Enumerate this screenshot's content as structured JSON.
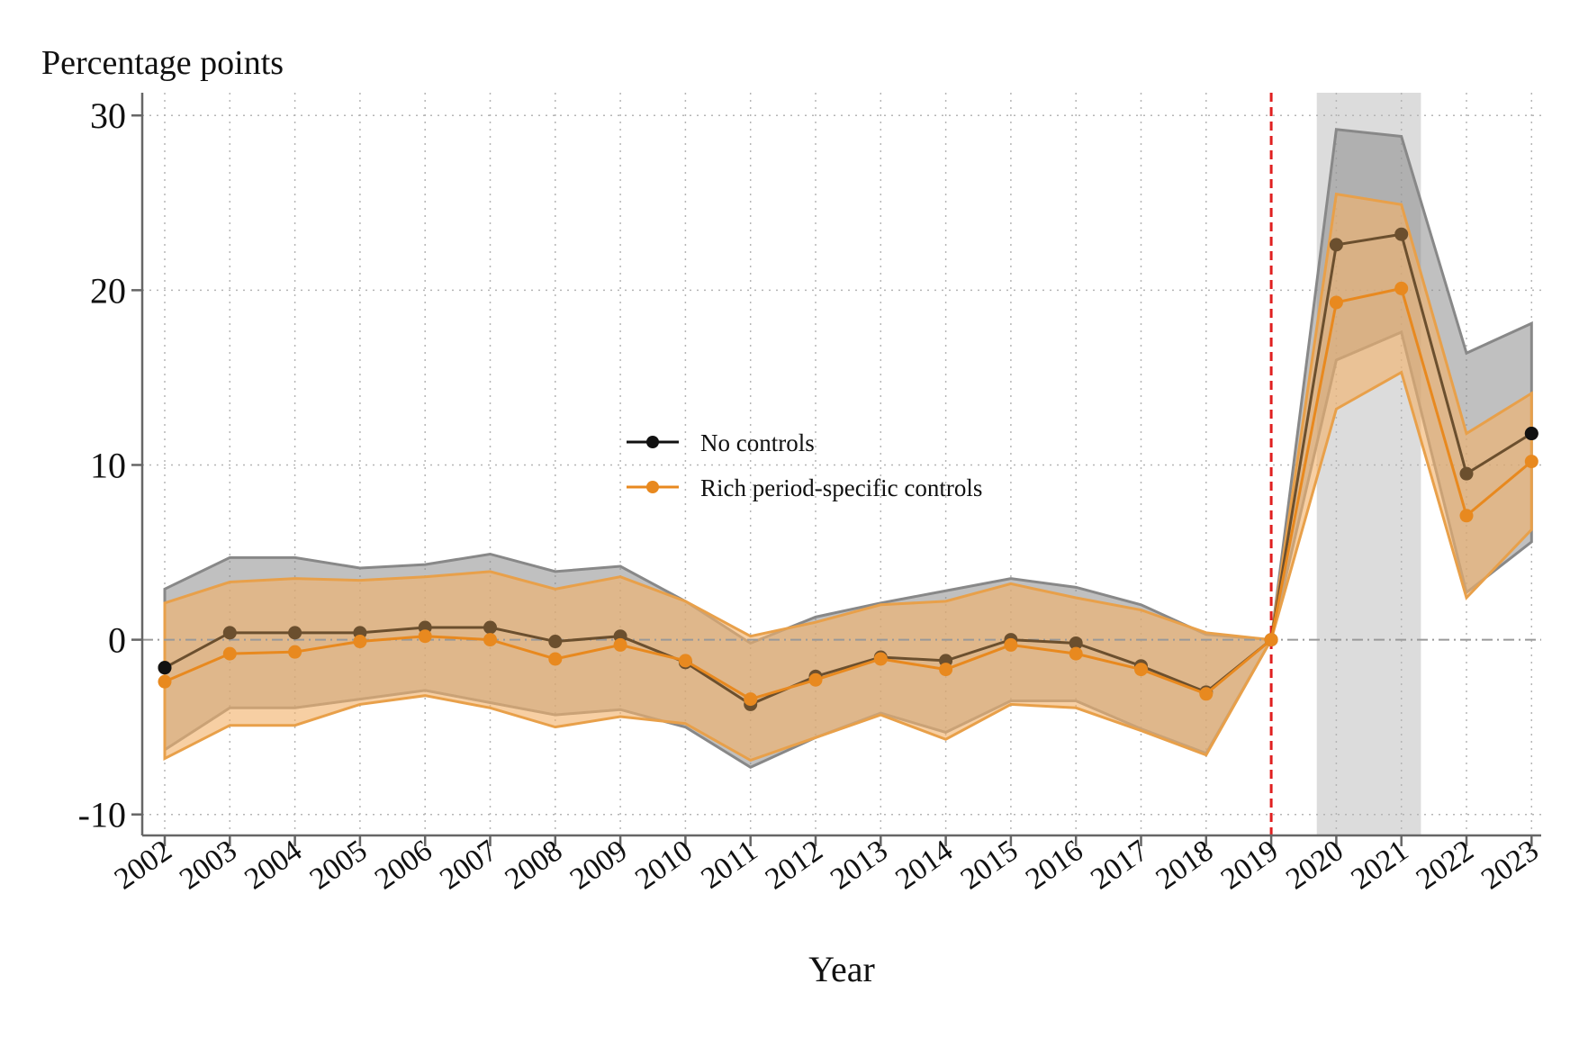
{
  "colors": {
    "no_controls": "#111111",
    "no_controls_line": "#6b4f2e",
    "no_controls_band": "#8c8c8c",
    "rich_controls": "#e8891f",
    "rich_controls_band": "#f2b26a",
    "overlap_band": "#c9a27a",
    "vline": "#e02020",
    "shade": "#dcdcdc",
    "zero_line": "#999999"
  },
  "chart_data": {
    "type": "line",
    "title": "",
    "ylabel": "Percentage points",
    "xlabel": "Year",
    "ylim": [
      -11.2,
      31.3
    ],
    "yticks": [
      -10,
      0,
      10,
      20,
      30
    ],
    "ytick_labels": [
      "-10",
      "0",
      "10",
      "20",
      "30"
    ],
    "x": [
      2002,
      2003,
      2004,
      2005,
      2006,
      2007,
      2008,
      2009,
      2010,
      2011,
      2012,
      2013,
      2014,
      2015,
      2016,
      2017,
      2018,
      2019,
      2020,
      2021,
      2022,
      2023
    ],
    "xtick_labels": [
      "2002",
      "2003",
      "2004",
      "2005",
      "2006",
      "2007",
      "2008",
      "2009",
      "2010",
      "2011",
      "2012",
      "2013",
      "2014",
      "2015",
      "2016",
      "2017",
      "2018",
      "2019",
      "2020",
      "2021",
      "2022",
      "2023"
    ],
    "reference_line": {
      "x": 2019,
      "style": "dashed"
    },
    "shaded_region": {
      "x_start": 2019.7,
      "x_end": 2021.3
    },
    "zero_line": {
      "y": 0,
      "style": "dash-dot"
    },
    "legend": {
      "position": "center",
      "entries": [
        "No controls",
        "Rich period-specific controls"
      ]
    },
    "series": [
      {
        "name": "No controls",
        "values": [
          -1.6,
          0.4,
          0.4,
          0.4,
          0.7,
          0.7,
          -0.1,
          0.2,
          -1.3,
          -3.7,
          -2.1,
          -1.0,
          -1.2,
          0.0,
          -0.2,
          -1.5,
          -3.0,
          0.0,
          22.6,
          23.2,
          9.5,
          11.8
        ],
        "ci_upper": [
          2.9,
          4.7,
          4.7,
          4.1,
          4.3,
          4.9,
          3.9,
          4.2,
          2.2,
          -0.2,
          1.3,
          2.1,
          2.8,
          3.5,
          3.0,
          2.0,
          0.3,
          0.0,
          29.2,
          28.8,
          16.4,
          18.1
        ],
        "ci_lower": [
          -6.3,
          -3.9,
          -3.9,
          -3.4,
          -2.9,
          -3.6,
          -4.3,
          -4.0,
          -5.0,
          -7.3,
          -5.6,
          -4.2,
          -5.3,
          -3.5,
          -3.5,
          -5.1,
          -6.5,
          0.0,
          16.0,
          17.6,
          2.7,
          5.6
        ]
      },
      {
        "name": "Rich period-specific controls",
        "values": [
          -2.4,
          -0.8,
          -0.7,
          -0.1,
          0.2,
          0.0,
          -1.1,
          -0.3,
          -1.2,
          -3.4,
          -2.3,
          -1.1,
          -1.7,
          -0.3,
          -0.8,
          -1.7,
          -3.1,
          0.0,
          19.3,
          20.1,
          7.1,
          10.2
        ],
        "ci_upper": [
          2.1,
          3.3,
          3.5,
          3.4,
          3.6,
          3.9,
          2.9,
          3.6,
          2.2,
          0.2,
          1.0,
          2.0,
          2.2,
          3.2,
          2.4,
          1.7,
          0.4,
          0.0,
          25.5,
          24.9,
          11.8,
          14.1
        ],
        "ci_lower": [
          -6.8,
          -4.9,
          -4.9,
          -3.7,
          -3.2,
          -3.9,
          -5.0,
          -4.4,
          -4.8,
          -6.9,
          -5.6,
          -4.3,
          -5.7,
          -3.7,
          -3.9,
          -5.2,
          -6.6,
          0.0,
          13.2,
          15.3,
          2.4,
          6.3
        ]
      }
    ]
  }
}
